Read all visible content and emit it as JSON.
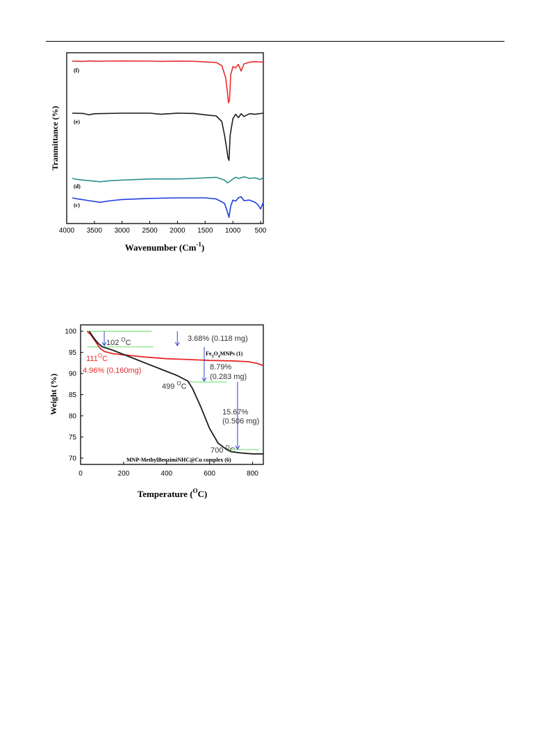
{
  "chart_data": [
    {
      "type": "line",
      "xlabel": "Wavenumber (Cm",
      "xlabel_sup": "-1",
      "xlabel_close": ")",
      "ylabel": "Tranmittance (%)",
      "xlim": [
        4000,
        450
      ],
      "x_reversed": true,
      "x_ticks": [
        "4000",
        "3500",
        "3000",
        "2500",
        "2000",
        "1500",
        "1000",
        "500"
      ],
      "y_ticks_shown": false,
      "grid": false,
      "series": [
        {
          "name": "(f)",
          "color": "#e8292b",
          "points": [
            [
              3900,
              0
            ],
            [
              3700,
              -0.5
            ],
            [
              3600,
              0.2
            ],
            [
              3500,
              -0.3
            ],
            [
              3300,
              0
            ],
            [
              3000,
              0.2
            ],
            [
              2500,
              0
            ],
            [
              2300,
              -0.5
            ],
            [
              2000,
              -0.1
            ],
            [
              1700,
              -0.4
            ],
            [
              1500,
              -1.5
            ],
            [
              1300,
              -2.5
            ],
            [
              1200,
              -8
            ],
            [
              1130,
              -30
            ],
            [
              1100,
              -55
            ],
            [
              1080,
              -75
            ],
            [
              1060,
              -70
            ],
            [
              1040,
              -25
            ],
            [
              1000,
              -10
            ],
            [
              950,
              -12
            ],
            [
              900,
              -6
            ],
            [
              850,
              -18
            ],
            [
              800,
              -5
            ],
            [
              700,
              -2
            ],
            [
              600,
              -1
            ],
            [
              450,
              -2
            ]
          ]
        },
        {
          "name": "(e)",
          "color": "#1a1a1a",
          "points": [
            [
              3900,
              0
            ],
            [
              3700,
              -0.5
            ],
            [
              3600,
              -3
            ],
            [
              3500,
              -1
            ],
            [
              3000,
              0
            ],
            [
              2500,
              0
            ],
            [
              2300,
              -2
            ],
            [
              2000,
              0
            ],
            [
              1700,
              -0.5
            ],
            [
              1500,
              -3
            ],
            [
              1300,
              -5
            ],
            [
              1200,
              -15
            ],
            [
              1150,
              -40
            ],
            [
              1110,
              -65
            ],
            [
              1090,
              -80
            ],
            [
              1070,
              -85
            ],
            [
              1050,
              -40
            ],
            [
              1000,
              -10
            ],
            [
              950,
              -2
            ],
            [
              900,
              -8
            ],
            [
              850,
              -1
            ],
            [
              800,
              -6
            ],
            [
              700,
              -1
            ],
            [
              600,
              -2
            ],
            [
              450,
              0
            ]
          ]
        },
        {
          "name": "(d)",
          "color": "#2b8c8c",
          "points": [
            [
              3900,
              0
            ],
            [
              3800,
              -2
            ],
            [
              3600,
              -4
            ],
            [
              3400,
              -6
            ],
            [
              3200,
              -4
            ],
            [
              3000,
              -3
            ],
            [
              2500,
              -1
            ],
            [
              2000,
              -1
            ],
            [
              1700,
              0
            ],
            [
              1500,
              1
            ],
            [
              1300,
              2
            ],
            [
              1150,
              -3
            ],
            [
              1100,
              -8
            ],
            [
              1050,
              -5
            ],
            [
              1000,
              -1
            ],
            [
              950,
              2
            ],
            [
              900,
              0
            ],
            [
              850,
              1
            ],
            [
              800,
              3
            ],
            [
              700,
              0
            ],
            [
              600,
              1
            ],
            [
              500,
              -2
            ],
            [
              450,
              2
            ]
          ]
        },
        {
          "name": "(c)",
          "color": "#1f3de0",
          "points": [
            [
              3900,
              0
            ],
            [
              3800,
              -2
            ],
            [
              3600,
              -5
            ],
            [
              3400,
              -8
            ],
            [
              3200,
              -5
            ],
            [
              3000,
              -3
            ],
            [
              2500,
              -1
            ],
            [
              2000,
              0
            ],
            [
              1700,
              0
            ],
            [
              1500,
              0
            ],
            [
              1300,
              -2
            ],
            [
              1150,
              -10
            ],
            [
              1100,
              -25
            ],
            [
              1070,
              -35
            ],
            [
              1040,
              -15
            ],
            [
              1000,
              -4
            ],
            [
              950,
              -6
            ],
            [
              900,
              0
            ],
            [
              850,
              2
            ],
            [
              800,
              -5
            ],
            [
              700,
              -4
            ],
            [
              600,
              -8
            ],
            [
              550,
              -12
            ],
            [
              500,
              -20
            ],
            [
              450,
              -8
            ]
          ]
        }
      ]
    },
    {
      "type": "line",
      "xlabel": "Temperature  (",
      "xlabel_sup": "O",
      "xlabel_close": "C)",
      "ylabel": "Weight (%)",
      "xlim": [
        0,
        850
      ],
      "ylim": [
        68.5,
        101.5
      ],
      "x_ticks": [
        0,
        200,
        400,
        600,
        800
      ],
      "y_ticks": [
        70,
        75,
        80,
        85,
        90,
        95,
        100
      ],
      "grid": false,
      "series": [
        {
          "name": "Fe3O4MNPs (1)",
          "color": "#e8292b",
          "points": [
            [
              30,
              100
            ],
            [
              50,
              99
            ],
            [
              70,
              97.5
            ],
            [
              90,
              96
            ],
            [
              111,
              95.2
            ],
            [
              150,
              94.7
            ],
            [
              200,
              94.4
            ],
            [
              300,
              93.9
            ],
            [
              400,
              93.5
            ],
            [
              500,
              93.3
            ],
            [
              600,
              93.1
            ],
            [
              700,
              93
            ],
            [
              780,
              92.8
            ],
            [
              820,
              92.4
            ],
            [
              850,
              91.9
            ]
          ]
        },
        {
          "name": "MNP-MethylBenzimiNHC@Cu complex (6)",
          "color": "#1a1a1a",
          "points": [
            [
              40,
              100
            ],
            [
              60,
              98.5
            ],
            [
              80,
              97.2
            ],
            [
              102,
              96.3
            ],
            [
              150,
              95.5
            ],
            [
              200,
              94.5
            ],
            [
              300,
              92.5
            ],
            [
              400,
              90.5
            ],
            [
              450,
              89.5
            ],
            [
              499,
              88.2
            ],
            [
              520,
              86.5
            ],
            [
              560,
              82
            ],
            [
              600,
              77
            ],
            [
              640,
              73.5
            ],
            [
              680,
              72
            ],
            [
              700,
              71.5
            ],
            [
              750,
              71.2
            ],
            [
              800,
              71
            ],
            [
              850,
              71
            ]
          ]
        }
      ],
      "annotations": {
        "t102": "102",
        "t111": "111",
        "t499": "499",
        "t700": "700",
        "deg": "O",
        "c": "C",
        "a1": "3.68% (0.118 mg)",
        "a2_line1": "8.79%",
        "a2_line2": "(0.283 mg)",
        "a3_line1": "15.67%",
        "a3_line2": "(0.506 mg)",
        "a4": "4.96% (0.160mg)",
        "label_fe_pre": "Fe",
        "label_fe_sub1": "3",
        "label_fe_mid": "O",
        "label_fe_sub2": "4",
        "label_fe_post": "MNPs (1)",
        "label_cu": "MNP-MethylBenzimiNHC@Cu complex (6)"
      },
      "guide_color": "#7ee37e",
      "arrow_color": "#2c3fd1"
    }
  ]
}
